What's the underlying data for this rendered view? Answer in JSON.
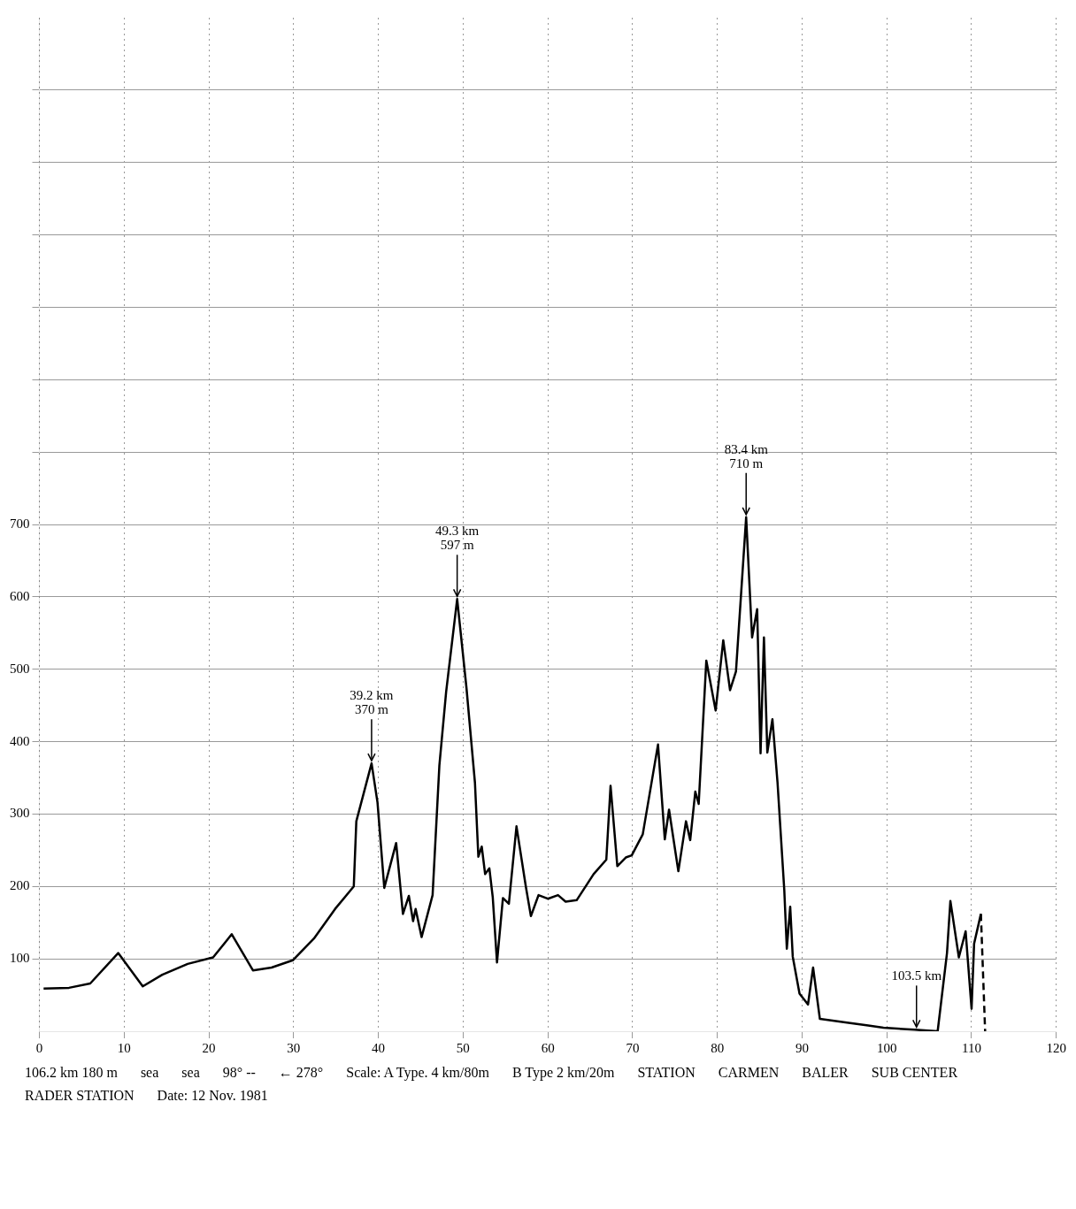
{
  "chart_data": {
    "type": "line",
    "xlim": [
      0,
      120
    ],
    "xticks": [
      0,
      10,
      20,
      30,
      40,
      50,
      60,
      70,
      80,
      90,
      100,
      110,
      120
    ],
    "ylim": [
      0,
      1400
    ],
    "yticks": [
      100,
      200,
      300,
      400,
      500,
      600,
      700,
      {
        "value": 800,
        "label": null
      },
      {
        "value": 900,
        "label": null
      },
      {
        "value": 1000,
        "label": null
      },
      {
        "value": 1100,
        "label": null
      },
      {
        "value": 1200,
        "label": null
      },
      {
        "value": 1300,
        "label": null
      }
    ],
    "grid": true,
    "legend": false,
    "marker": "none",
    "series": [
      {
        "color": "#000000",
        "line_style": "solid",
        "x": [
          0.5,
          3.5,
          6.0,
          9.3,
          12.2,
          14.5,
          17.5,
          20.5,
          22.7,
          25.2,
          27.4,
          29.9,
          32.4,
          34.9,
          37.1,
          37.4,
          39.2,
          39.9,
          40.7,
          42.1,
          42.9,
          43.6,
          44.1,
          44.4,
          45.1,
          46.4,
          47.2,
          48.0,
          49.3,
          50.4,
          51.4,
          51.8,
          52.2,
          52.6,
          53.1,
          53.5,
          54.0,
          54.7,
          55.4,
          56.3,
          57.4,
          58.0,
          58.9,
          60.0,
          61.2,
          62.1,
          63.4,
          65.4,
          66.9,
          67.4,
          68.2,
          69.2,
          69.9,
          71.2,
          73.0,
          73.8,
          74.3,
          75.4,
          76.3,
          76.8,
          77.4,
          77.8,
          78.7,
          79.8,
          80.7,
          81.5,
          82.2,
          83.4,
          84.1,
          84.7,
          85.1,
          85.5,
          85.9,
          86.5,
          87.1,
          87.9,
          88.2,
          88.6,
          88.9,
          89.7,
          90.7,
          91.3,
          92.1,
          95.3,
          97.8,
          99.6,
          103.3,
          106.0,
          107.1,
          107.5,
          108.5,
          109.3,
          110.0,
          110.3,
          111.1
        ],
        "values": [
          59,
          60,
          66,
          108,
          62,
          78,
          93,
          102,
          134,
          84,
          88,
          98,
          128,
          169,
          200,
          290,
          370,
          316,
          198,
          260,
          162,
          187,
          152,
          169,
          130,
          188,
          367,
          469,
          597,
          474,
          343,
          241,
          255,
          217,
          225,
          185,
          95,
          184,
          176,
          283,
          200,
          159,
          188,
          183,
          188,
          179,
          181,
          217,
          237,
          339,
          228,
          240,
          243,
          272,
          396,
          265,
          306,
          221,
          290,
          264,
          331,
          314,
          512,
          443,
          540,
          471,
          497,
          710,
          544,
          583,
          384,
          544,
          385,
          431,
          344,
          195,
          114,
          172,
          103,
          52,
          37,
          88,
          17,
          12,
          8,
          5,
          2,
          0,
          108,
          180,
          102,
          138,
          31,
          121,
          162
        ]
      },
      {
        "color": "#000000",
        "line_style": "dashed",
        "x": [
          111.1,
          111.6
        ],
        "values": [
          162,
          0
        ]
      }
    ],
    "annotations": [
      {
        "text": "39.2 km\n370 m",
        "x": 39.2,
        "y": 370
      },
      {
        "text": "49.3 km\n597 m",
        "x": 49.3,
        "y": 597
      },
      {
        "text": "83.4 km\n710 m",
        "x": 83.4,
        "y": 710
      },
      {
        "text": "103.5 km",
        "x": 103.5,
        "y": 2
      },
      "106.2 km 180 m",
      "sea",
      "sea",
      "98° --",
      "← 278°",
      "Scale:  A Type. 4 km/80m",
      "B Type 2 km/20m",
      "STATION",
      "CARMEN",
      "BALER",
      "SUB CENTER",
      "RADER STATION",
      "Date:  12 Nov. 1981"
    ]
  }
}
